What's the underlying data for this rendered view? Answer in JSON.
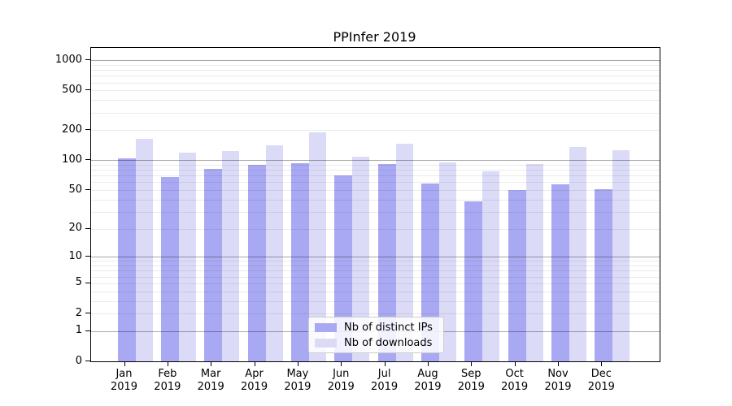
{
  "title": "PPInfer 2019",
  "legend": {
    "items": [
      {
        "label": "Nb of distinct IPs",
        "color": "#a9a9f3"
      },
      {
        "label": "Nb of downloads",
        "color": "#dbdbf8"
      }
    ]
  },
  "colors": {
    "distinct_ips": "#a9a9f3",
    "downloads": "#dbdbf8",
    "frame": "#000000"
  },
  "chart_data": {
    "type": "bar",
    "title": "PPInfer 2019",
    "categories": [
      "Jan",
      "Feb",
      "Mar",
      "Apr",
      "May",
      "Jun",
      "Jul",
      "Aug",
      "Sep",
      "Oct",
      "Nov",
      "Dec"
    ],
    "year": "2019",
    "series": [
      {
        "name": "Nb of distinct IPs",
        "color": "#a9a9f3",
        "values": [
          105,
          68,
          82,
          90,
          94,
          71,
          91,
          58,
          38,
          50,
          57,
          51
        ]
      },
      {
        "name": "Nb of downloads",
        "color": "#dbdbf8",
        "values": [
          165,
          120,
          125,
          140,
          190,
          108,
          148,
          95,
          77,
          91,
          135,
          127
        ]
      }
    ],
    "xlabel": "",
    "ylabel": "",
    "yscale": "log1p",
    "yticks": [
      0,
      1,
      2,
      5,
      10,
      20,
      50,
      100,
      200,
      500,
      1000
    ],
    "major_gridlines": [
      1,
      10,
      100,
      1000
    ],
    "minor_gridlines": [
      2,
      3,
      4,
      5,
      6,
      7,
      8,
      9,
      20,
      30,
      40,
      50,
      60,
      70,
      80,
      90,
      200,
      300,
      400,
      500,
      600,
      700,
      800,
      900
    ],
    "ylim": [
      0,
      1330
    ],
    "grid": "on",
    "legend_position": "bottom-center"
  }
}
